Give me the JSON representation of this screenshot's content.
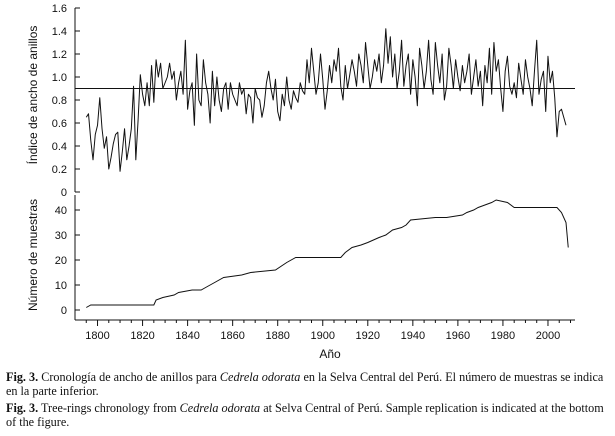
{
  "chart_data": [
    {
      "type": "line",
      "ylabel": "Índice de ancho de anillos",
      "xlim": [
        1790,
        2012
      ],
      "ylim": [
        0,
        1.6
      ],
      "yticks": [
        0,
        0.2,
        0.4,
        0.6,
        0.8,
        1.0,
        1.2,
        1.4,
        1.6
      ],
      "ytick_labels": [
        "0",
        "0.2",
        "0.4",
        "0.6",
        "0.8",
        "1.0",
        "1.2",
        "1.4",
        "1.6"
      ],
      "reference_line": 0.9,
      "series": [
        {
          "x_start": 1795,
          "x_step": 1,
          "values": [
            0.65,
            0.68,
            0.45,
            0.28,
            0.5,
            0.58,
            0.82,
            0.55,
            0.38,
            0.48,
            0.2,
            0.3,
            0.42,
            0.5,
            0.52,
            0.18,
            0.35,
            0.55,
            0.28,
            0.4,
            0.55,
            0.92,
            0.28,
            0.62,
            1.02,
            0.85,
            0.75,
            0.95,
            0.75,
            1.1,
            0.78,
            1.15,
            1.0,
            1.12,
            0.9,
            0.95,
            1.0,
            1.12,
            0.98,
            1.05,
            0.8,
            0.95,
            1.05,
            0.85,
            1.32,
            0.72,
            0.88,
            0.95,
            0.58,
            1.2,
            0.8,
            0.75,
            1.15,
            0.95,
            0.85,
            0.6,
            1.05,
            0.75,
            1.0,
            0.8,
            0.7,
            0.9,
            0.95,
            0.72,
            0.95,
            0.85,
            0.8,
            0.75,
            0.95,
            0.85,
            0.9,
            0.68,
            0.85,
            0.82,
            0.6,
            0.9,
            0.82,
            0.8,
            0.65,
            0.75,
            0.95,
            1.05,
            0.9,
            0.8,
            0.98,
            0.7,
            0.62,
            0.85,
            0.75,
            1.0,
            0.8,
            0.72,
            0.88,
            0.82,
            0.78,
            0.95,
            0.88,
            0.85,
            1.15,
            0.95,
            1.25,
            1.05,
            0.85,
            0.95,
            1.2,
            0.98,
            0.72,
            0.88,
            1.1,
            0.95,
            1.15,
            1.05,
            1.25,
            0.92,
            0.8,
            1.1,
            0.9,
            1.02,
            1.15,
            1.05,
            0.92,
            1.2,
            1.1,
            0.95,
            1.3,
            1.1,
            0.9,
            1.0,
            1.15,
            1.05,
            1.2,
            0.95,
            1.1,
            1.42,
            1.12,
            1.35,
            1.0,
            1.2,
            0.9,
            1.05,
            1.32,
            0.92,
            1.1,
            1.2,
            0.85,
            1.15,
            1.0,
            0.75,
            1.25,
            1.1,
            0.9,
            1.05,
            1.32,
            0.98,
            0.85,
            1.3,
            1.1,
            0.95,
            1.2,
            0.8,
            0.92,
            1.25,
            1.1,
            0.9,
            1.15,
            1.0,
            0.88,
            1.1,
            0.95,
            1.05,
            1.2,
            0.85,
            1.0,
            1.15,
            0.92,
            1.05,
            0.75,
            1.1,
            0.95,
            1.25,
            0.85,
            1.3,
            1.05,
            1.15,
            0.9,
            0.7,
            1.05,
            1.18,
            0.92,
            0.85,
            0.95,
            0.82,
            1.12,
            0.98,
            0.85,
            1.15,
            1.0,
            0.9,
            0.75,
            1.05,
            1.32,
            0.85,
            0.98,
            1.05,
            0.7,
            1.18,
            0.95,
            1.05,
            0.82,
            0.48,
            0.7,
            0.72,
            0.65,
            0.58
          ]
        }
      ]
    },
    {
      "type": "line",
      "xlabel": "Año",
      "ylabel": "Número de muestras",
      "xlim": [
        1790,
        2012
      ],
      "ylim": [
        -3,
        46
      ],
      "xticks": [
        1800,
        1820,
        1840,
        1860,
        1880,
        1900,
        1920,
        1940,
        1960,
        1980,
        2000
      ],
      "xtick_labels": [
        "1800",
        "1820",
        "1840",
        "1860",
        "1880",
        "1900",
        "1920",
        "1940",
        "1960",
        "1980",
        "2000"
      ],
      "yticks": [
        0,
        10,
        20,
        30,
        40
      ],
      "ytick_labels": [
        "0",
        "10",
        "20",
        "30",
        "40"
      ],
      "series": [
        {
          "x": [
            1795,
            1797,
            1825,
            1826,
            1829,
            1834,
            1836,
            1842,
            1846,
            1848,
            1852,
            1856,
            1864,
            1868,
            1879,
            1884,
            1888,
            1908,
            1910,
            1913,
            1917,
            1920,
            1925,
            1928,
            1931,
            1935,
            1937,
            1939,
            1950,
            1955,
            1962,
            1964,
            1967,
            1969,
            1972,
            1975,
            1977,
            1982,
            1985,
            2004,
            2006,
            2008,
            2009
          ],
          "y": [
            1,
            2,
            2,
            4,
            5,
            6,
            7,
            8,
            8,
            9,
            11,
            13,
            14,
            15,
            16,
            19,
            21,
            21,
            23,
            25,
            26,
            27,
            29,
            30,
            32,
            33,
            34,
            36,
            37,
            37,
            38,
            39,
            40,
            41,
            42,
            43,
            44,
            43,
            41,
            41,
            39,
            35,
            25
          ]
        }
      ]
    }
  ],
  "caption": {
    "es": {
      "label": "Fig. 3.",
      "text_before": " Cronología de ancho de anillos para ",
      "species": "Cedrela odorata",
      "text_after": " en la Selva Central del Perú. El número de muestras se indica en la parte inferior."
    },
    "en": {
      "label": "Fig. 3.",
      "text_before": " Tree-rings chronology from ",
      "species": "Cedrela odorata",
      "text_after": " at Selva Central of Perú. Sample replication is indicated at the bottom of the figure."
    }
  },
  "colors": {
    "line": "#111111",
    "axis": "#111111",
    "background": "#ffffff"
  }
}
